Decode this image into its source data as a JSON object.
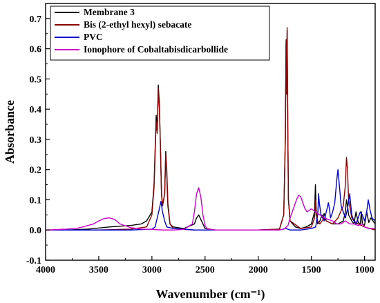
{
  "chart_data": {
    "type": "line",
    "title": "",
    "xlabel": "Wavenumber (cm⁻¹)",
    "ylabel": "Absorbance",
    "xlim": [
      4000,
      900
    ],
    "ylim": [
      -0.1,
      0.75
    ],
    "x_reversed": true,
    "xticks": [
      4000,
      3500,
      3000,
      2500,
      2000,
      1500,
      1000
    ],
    "xtick_labels": [
      "4000",
      "3500",
      "3000",
      "2500",
      "2000",
      "1500",
      "1000"
    ],
    "yticks": [
      -0.1,
      0.0,
      0.1,
      0.2,
      0.3,
      0.4,
      0.5,
      0.6,
      0.7
    ],
    "ytick_labels": [
      "-0.1",
      "0.0",
      "0.1",
      "0.2",
      "0.3",
      "0.4",
      "0.5",
      "0.6",
      "0.7"
    ],
    "grid": false,
    "legend_position": "top-left",
    "series": [
      {
        "name": "Membrane 3",
        "color": "#000000",
        "x": [
          4000,
          3800,
          3600,
          3400,
          3200,
          3100,
          3050,
          3000,
          2980,
          2960,
          2950,
          2940,
          2930,
          2920,
          2910,
          2900,
          2880,
          2870,
          2860,
          2850,
          2830,
          2800,
          2700,
          2600,
          2580,
          2560,
          2540,
          2500,
          2400,
          2200,
          2000,
          1800,
          1760,
          1745,
          1738,
          1732,
          1728,
          1722,
          1716,
          1700,
          1650,
          1600,
          1550,
          1500,
          1470,
          1462,
          1455,
          1448,
          1440,
          1420,
          1400,
          1390,
          1380,
          1360,
          1300,
          1250,
          1200,
          1180,
          1170,
          1160,
          1150,
          1120,
          1100,
          1080,
          1060,
          1040,
          1030,
          1020,
          1000,
          980,
          960,
          940,
          920,
          900
        ],
        "values": [
          0.0,
          0.0,
          0.003,
          0.01,
          0.015,
          0.02,
          0.03,
          0.06,
          0.15,
          0.38,
          0.33,
          0.48,
          0.42,
          0.28,
          0.12,
          0.08,
          0.12,
          0.26,
          0.18,
          0.08,
          0.02,
          0.01,
          0.005,
          0.02,
          0.04,
          0.05,
          0.035,
          0.005,
          0.0,
          0.0,
          0.0,
          0.003,
          0.05,
          0.3,
          0.62,
          0.45,
          0.66,
          0.35,
          0.1,
          0.03,
          0.01,
          0.005,
          0.01,
          0.02,
          0.06,
          0.15,
          0.07,
          0.03,
          0.02,
          0.03,
          0.05,
          0.04,
          0.055,
          0.03,
          0.02,
          0.02,
          0.03,
          0.06,
          0.1,
          0.08,
          0.05,
          0.03,
          0.02,
          0.06,
          0.025,
          0.02,
          0.06,
          0.02,
          0.015,
          0.06,
          0.025,
          0.04,
          0.03,
          0.02
        ]
      },
      {
        "name": "Bis (2-ethyl hexyl) sebacate",
        "color": "#8B0000",
        "x": [
          4000,
          3500,
          3200,
          3050,
          3000,
          2980,
          2960,
          2950,
          2940,
          2930,
          2920,
          2910,
          2900,
          2880,
          2870,
          2860,
          2850,
          2830,
          2800,
          2600,
          2500,
          2000,
          1800,
          1760,
          1745,
          1738,
          1732,
          1728,
          1722,
          1716,
          1700,
          1600,
          1500,
          1470,
          1460,
          1455,
          1440,
          1420,
          1400,
          1380,
          1360,
          1300,
          1250,
          1200,
          1180,
          1170,
          1160,
          1150,
          1120,
          1100,
          1060,
          1000,
          950,
          900
        ],
        "values": [
          0.0,
          0.0,
          0.003,
          0.01,
          0.05,
          0.14,
          0.36,
          0.32,
          0.47,
          0.4,
          0.28,
          0.12,
          0.08,
          0.12,
          0.25,
          0.2,
          0.09,
          0.02,
          0.005,
          0.0,
          0.0,
          0.0,
          0.003,
          0.05,
          0.3,
          0.63,
          0.45,
          0.67,
          0.35,
          0.1,
          0.03,
          0.005,
          0.01,
          0.04,
          0.1,
          0.05,
          0.03,
          0.02,
          0.03,
          0.04,
          0.03,
          0.02,
          0.04,
          0.08,
          0.15,
          0.24,
          0.2,
          0.1,
          0.04,
          0.03,
          0.02,
          0.01,
          0.005,
          0.0
        ]
      },
      {
        "name": "PVC",
        "color": "#0000CC",
        "x": [
          4000,
          3800,
          3600,
          3400,
          3200,
          3000,
          2970,
          2950,
          2930,
          2915,
          2900,
          2880,
          2860,
          2800,
          2600,
          2400,
          2000,
          1800,
          1740,
          1700,
          1600,
          1500,
          1460,
          1440,
          1432,
          1425,
          1410,
          1380,
          1360,
          1340,
          1330,
          1320,
          1300,
          1280,
          1260,
          1250,
          1240,
          1230,
          1220,
          1200,
          1180,
          1160,
          1140,
          1120,
          1100,
          1080,
          1060,
          1040,
          1020,
          1000,
          980,
          965,
          950,
          930,
          900
        ],
        "values": [
          0.0,
          0.0,
          0.0,
          0.0,
          0.0,
          0.003,
          0.01,
          0.04,
          0.07,
          0.095,
          0.06,
          0.03,
          0.01,
          0.005,
          0.0,
          0.0,
          0.0,
          0.0,
          0.005,
          0.0,
          0.0,
          0.005,
          0.01,
          0.05,
          0.12,
          0.09,
          0.05,
          0.03,
          0.06,
          0.09,
          0.07,
          0.04,
          0.06,
          0.09,
          0.17,
          0.2,
          0.16,
          0.12,
          0.08,
          0.06,
          0.04,
          0.07,
          0.12,
          0.05,
          0.03,
          0.02,
          0.04,
          0.06,
          0.05,
          0.03,
          0.06,
          0.1,
          0.07,
          0.04,
          0.03
        ]
      },
      {
        "name": "Ionophore of Cobaltabisdicarbollide",
        "color": "#CC00CC",
        "x": [
          4000,
          3800,
          3700,
          3650,
          3600,
          3550,
          3500,
          3450,
          3400,
          3350,
          3300,
          3200,
          3100,
          3000,
          2900,
          2800,
          2700,
          2620,
          2600,
          2580,
          2560,
          2540,
          2520,
          2500,
          2480,
          2400,
          2200,
          2000,
          1800,
          1750,
          1720,
          1700,
          1680,
          1660,
          1640,
          1620,
          1600,
          1580,
          1560,
          1540,
          1500,
          1460,
          1420,
          1380,
          1340,
          1300,
          1260,
          1220,
          1180,
          1140,
          1100,
          1060,
          1020,
          1000,
          960,
          920,
          900
        ],
        "values": [
          0.0,
          0.003,
          0.006,
          0.01,
          0.015,
          0.02,
          0.03,
          0.038,
          0.04,
          0.035,
          0.02,
          0.008,
          0.003,
          0.002,
          0.0,
          0.0,
          0.002,
          0.02,
          0.06,
          0.12,
          0.14,
          0.11,
          0.05,
          0.015,
          0.003,
          0.0,
          0.0,
          0.0,
          0.0,
          0.005,
          0.015,
          0.04,
          0.06,
          0.08,
          0.1,
          0.115,
          0.11,
          0.09,
          0.07,
          0.06,
          0.07,
          0.06,
          0.05,
          0.04,
          0.035,
          0.03,
          0.02,
          0.02,
          0.03,
          0.02,
          0.02,
          0.015,
          0.02,
          0.01,
          0.005,
          0.005,
          0.005
        ]
      }
    ]
  }
}
